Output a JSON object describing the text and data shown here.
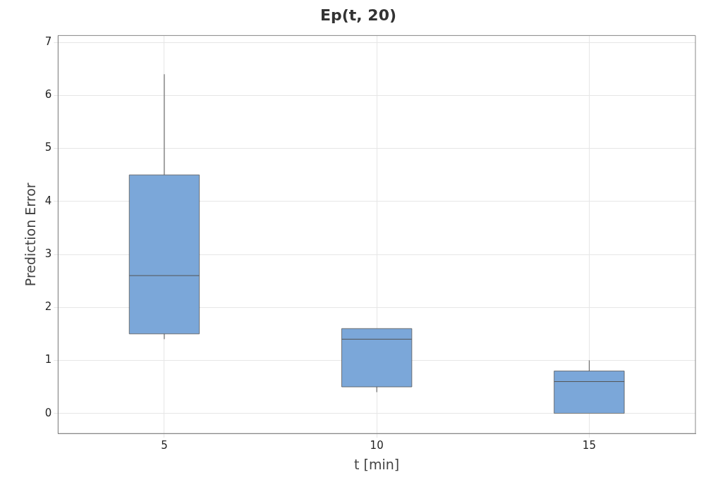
{
  "chart_data": {
    "type": "box",
    "title": "Ep(t, 20)",
    "xlabel": "t [min]",
    "ylabel": "Prediction Error",
    "categories": [
      "5",
      "10",
      "15"
    ],
    "color": "#7ba7d9",
    "boxes": [
      {
        "low": 1.4,
        "q1": 1.5,
        "median": 2.6,
        "q3": 4.5,
        "high": 6.4
      },
      {
        "low": 0.4,
        "q1": 0.5,
        "median": 1.4,
        "q3": 1.6,
        "high": 1.6
      },
      {
        "low": 0,
        "q1": 0,
        "median": 0.6,
        "q3": 0.8,
        "high": 1.0
      }
    ],
    "ylim": [
      -0.38,
      7.13
    ],
    "yticks": [
      0,
      1,
      2,
      3,
      4,
      5,
      6,
      7
    ],
    "grid": true
  }
}
